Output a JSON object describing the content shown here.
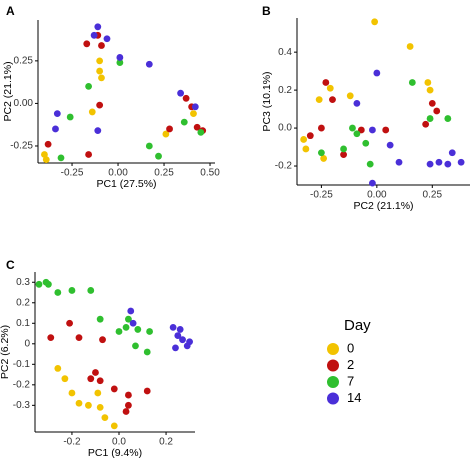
{
  "chart_data": [
    {
      "type": "scatter",
      "panel": "A",
      "xlabel": "PC1 (27.5%)",
      "ylabel": "PC2 (21.1%)",
      "xlim": [
        -0.435,
        0.527
      ],
      "ylim": [
        -0.35,
        0.49
      ],
      "xticks": [
        -0.25,
        {
          "value": 0,
          "label": "0.00"
        },
        0.25,
        {
          "value": 0.5,
          "label": "0.50"
        }
      ],
      "yticks": [
        -0.25,
        {
          "value": 0,
          "label": "0.00"
        },
        0.25
      ],
      "series": [
        {
          "color": "#f2c300",
          "x": [
            -0.1,
            -0.1,
            -0.09,
            -0.14,
            -0.4,
            -0.39,
            0.26,
            0.41
          ],
          "y": [
            0.25,
            0.19,
            0.15,
            -0.05,
            -0.3,
            -0.33,
            -0.18,
            -0.06
          ]
        },
        {
          "color": "#c01010",
          "x": [
            -0.11,
            -0.09,
            -0.17,
            -0.38,
            -0.16,
            0.37,
            0.4,
            0.43,
            0.46,
            0.28,
            -0.1
          ],
          "y": [
            0.4,
            0.34,
            0.35,
            -0.24,
            -0.3,
            0.03,
            -0.02,
            -0.14,
            -0.16,
            -0.15,
            -0.01
          ]
        },
        {
          "color": "#2fbf2f",
          "x": [
            0.01,
            -0.16,
            -0.26,
            -0.31,
            0.17,
            0.22,
            0.36,
            0.45
          ],
          "y": [
            0.24,
            0.1,
            -0.08,
            -0.32,
            -0.25,
            -0.31,
            -0.11,
            -0.17
          ]
        },
        {
          "color": "#4a2fd8",
          "x": [
            -0.11,
            -0.13,
            -0.06,
            0.01,
            0.17,
            -0.33,
            -0.34,
            -0.11,
            0.34,
            0.42
          ],
          "y": [
            0.45,
            0.4,
            0.38,
            0.27,
            0.23,
            -0.06,
            -0.15,
            -0.16,
            0.06,
            -0.02
          ]
        }
      ]
    },
    {
      "type": "scatter",
      "panel": "B",
      "xlabel": "PC2 (21.1%)",
      "ylabel": "PC3 (10.1%)",
      "xlim": [
        -0.36,
        0.42
      ],
      "ylim": [
        -0.3,
        0.58
      ],
      "xticks": [
        -0.25,
        {
          "value": 0,
          "label": "0.00"
        },
        0.25
      ],
      "yticks": [
        -0.2,
        {
          "value": 0,
          "label": "0.0"
        },
        0.2,
        0.4
      ],
      "series": [
        {
          "color": "#f2c300",
          "x": [
            -0.01,
            0.15,
            0.23,
            0.24,
            -0.21,
            -0.26,
            -0.12,
            -0.33,
            -0.32,
            -0.24
          ],
          "y": [
            0.56,
            0.43,
            0.24,
            0.2,
            0.21,
            0.15,
            0.17,
            -0.06,
            -0.11,
            -0.16
          ]
        },
        {
          "color": "#c01010",
          "x": [
            -0.23,
            -0.2,
            0.25,
            0.27,
            -0.25,
            -0.15,
            -0.07,
            0.04,
            0.22,
            -0.3
          ],
          "y": [
            0.24,
            0.15,
            0.13,
            0.09,
            0.0,
            -0.14,
            -0.01,
            -0.01,
            0.02,
            -0.04
          ]
        },
        {
          "color": "#2fbf2f",
          "x": [
            0.16,
            -0.11,
            -0.09,
            -0.05,
            -0.15,
            0.24,
            0.32,
            -0.03,
            -0.25
          ],
          "y": [
            0.24,
            0.0,
            -0.03,
            -0.08,
            -0.11,
            0.05,
            0.05,
            -0.19,
            -0.13
          ]
        },
        {
          "color": "#4a2fd8",
          "x": [
            0.0,
            -0.09,
            0.06,
            0.1,
            -0.02,
            0.24,
            0.28,
            0.34,
            0.38,
            0.32,
            -0.02
          ],
          "y": [
            0.29,
            0.13,
            -0.09,
            -0.18,
            -0.29,
            -0.19,
            -0.18,
            -0.13,
            -0.18,
            -0.19,
            -0.01
          ]
        }
      ]
    },
    {
      "type": "scatter",
      "panel": "C",
      "xlabel": "PC1 (9.4%)",
      "ylabel": "PC2 (6.2%)",
      "xlim": [
        -0.357,
        0.323
      ],
      "ylim": [
        -0.43,
        0.35
      ],
      "xticks": [
        -0.2,
        {
          "value": 0,
          "label": "0.0"
        },
        0.2
      ],
      "yticks": [
        -0.3,
        -0.2,
        -0.1,
        0,
        0.1,
        0.2,
        0.3
      ],
      "legend_title": "Day",
      "series": [
        {
          "name": "0",
          "color": "#f2c300",
          "x": [
            -0.26,
            -0.23,
            -0.2,
            -0.17,
            -0.13,
            -0.08,
            -0.06,
            -0.02,
            -0.09
          ],
          "y": [
            -0.12,
            -0.17,
            -0.24,
            -0.29,
            -0.3,
            -0.31,
            -0.36,
            -0.4,
            -0.24
          ]
        },
        {
          "name": "2",
          "color": "#c01010",
          "x": [
            -0.21,
            -0.29,
            -0.17,
            -0.07,
            -0.12,
            -0.1,
            -0.08,
            -0.02,
            0.04,
            0.04,
            0.03,
            0.12
          ],
          "y": [
            0.1,
            0.03,
            0.03,
            0.02,
            -0.17,
            -0.14,
            -0.18,
            -0.22,
            -0.25,
            -0.3,
            -0.33,
            -0.23
          ]
        },
        {
          "name": "7",
          "color": "#2fbf2f",
          "x": [
            -0.31,
            -0.3,
            -0.34,
            -0.26,
            -0.2,
            -0.12,
            -0.08,
            0.0,
            0.03,
            0.08,
            0.13,
            0.12,
            0.04,
            0.07
          ],
          "y": [
            0.3,
            0.29,
            0.29,
            0.25,
            0.26,
            0.26,
            0.12,
            0.06,
            0.08,
            0.07,
            0.06,
            -0.04,
            0.12,
            -0.01
          ]
        },
        {
          "name": "14",
          "color": "#4a2fd8",
          "x": [
            0.05,
            0.06,
            0.23,
            0.26,
            0.27,
            0.24,
            0.29,
            0.3,
            0.25
          ],
          "y": [
            0.16,
            0.1,
            0.08,
            0.07,
            0.02,
            -0.02,
            -0.01,
            0.01,
            0.04
          ]
        }
      ]
    }
  ]
}
